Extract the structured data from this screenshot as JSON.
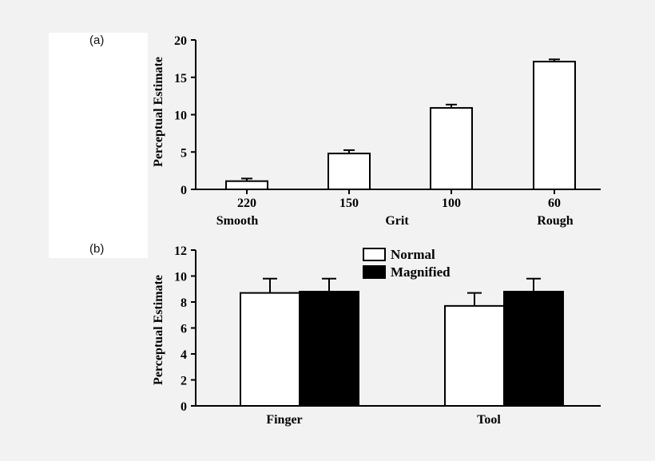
{
  "panels": {
    "a_label": "(a)",
    "b_label": "(b)"
  },
  "colors": {
    "background": "#f2f2f2",
    "panel": "#ffffff",
    "open_bar": "#ffffff",
    "filled_bar": "#000000"
  },
  "chart_data": [
    {
      "type": "bar",
      "panel": "a",
      "categories": [
        "220",
        "150",
        "100",
        "60"
      ],
      "values": [
        1.1,
        4.8,
        10.9,
        17.1
      ],
      "errors": [
        0.35,
        0.45,
        0.45,
        0.3
      ],
      "xlabel_left": "Smooth",
      "xlabel_center": "Grit",
      "xlabel_right": "Rough",
      "ylabel": "Perceptual Estimate",
      "ylim": [
        0,
        20
      ],
      "yticks": [
        0,
        5,
        10,
        15,
        20
      ]
    },
    {
      "type": "bar",
      "panel": "b",
      "categories": [
        "Finger",
        "Tool"
      ],
      "series": [
        {
          "name": "Normal",
          "values": [
            8.7,
            7.7
          ],
          "errors": [
            1.1,
            1.0
          ]
        },
        {
          "name": "Magnified",
          "values": [
            8.8,
            8.8
          ],
          "errors": [
            1.0,
            1.0
          ]
        }
      ],
      "ylabel": "Perceptual Estimate",
      "ylim": [
        0,
        12
      ],
      "yticks": [
        0,
        2,
        4,
        6,
        8,
        10,
        12
      ]
    }
  ]
}
